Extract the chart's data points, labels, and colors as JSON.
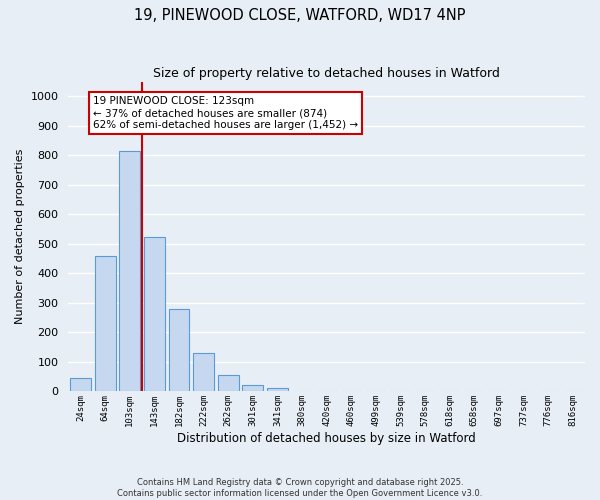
{
  "title": "19, PINEWOOD CLOSE, WATFORD, WD17 4NP",
  "subtitle": "Size of property relative to detached houses in Watford",
  "xlabel": "Distribution of detached houses by size in Watford",
  "ylabel": "Number of detached properties",
  "categories": [
    "24sqm",
    "64sqm",
    "103sqm",
    "143sqm",
    "182sqm",
    "222sqm",
    "262sqm",
    "301sqm",
    "341sqm",
    "380sqm",
    "420sqm",
    "460sqm",
    "499sqm",
    "539sqm",
    "578sqm",
    "618sqm",
    "658sqm",
    "697sqm",
    "737sqm",
    "776sqm",
    "816sqm"
  ],
  "bar_values": [
    45,
    460,
    815,
    525,
    278,
    130,
    57,
    22,
    10,
    0,
    0,
    0,
    0,
    0,
    0,
    0,
    0,
    0,
    0,
    0,
    0
  ],
  "bar_color": "#c5d8ef",
  "bar_edge_color": "#5b9bd5",
  "background_color": "#e8eef5",
  "grid_color": "#ffffff",
  "ylim": [
    0,
    1050
  ],
  "yticks": [
    0,
    100,
    200,
    300,
    400,
    500,
    600,
    700,
    800,
    900,
    1000
  ],
  "vline_color": "#cc0000",
  "annotation_title": "19 PINEWOOD CLOSE: 123sqm",
  "annotation_line1": "← 37% of detached houses are smaller (874)",
  "annotation_line2": "62% of semi-detached houses are larger (1,452) →",
  "annotation_box_color": "#ffffff",
  "annotation_box_edge_color": "#cc0000",
  "footnote1": "Contains HM Land Registry data © Crown copyright and database right 2025.",
  "footnote2": "Contains public sector information licensed under the Open Government Licence v3.0."
}
